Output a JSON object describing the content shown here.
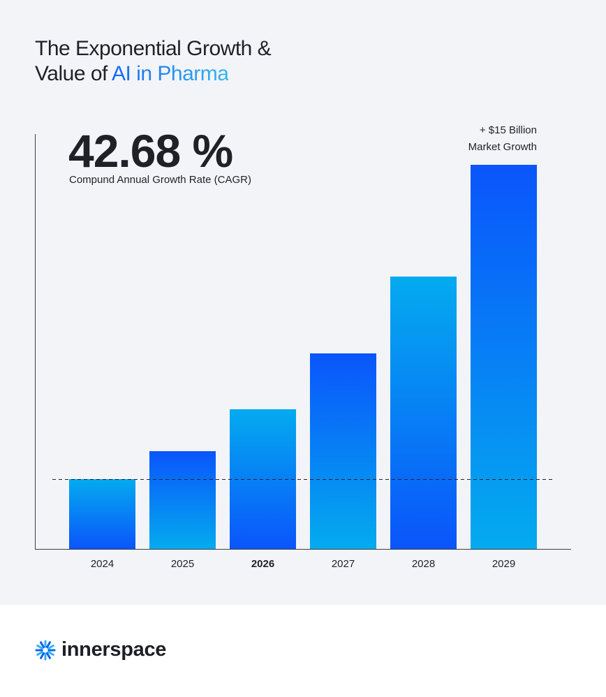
{
  "title": {
    "line1": "The Exponential Growth &",
    "line2_prefix": "Value of ",
    "line2_highlight": "AI in Pharma"
  },
  "stat": {
    "value": "42.68 %",
    "label": "Compund Annual Growth Rate (CAGR)"
  },
  "annotation": {
    "line1": "+ $15 Billion",
    "line2": "Market Growth"
  },
  "chart_data": {
    "type": "bar",
    "categories": [
      "2024",
      "2025",
      "2026",
      "2027",
      "2028",
      "2029"
    ],
    "values": [
      100,
      140,
      200,
      280,
      390,
      550
    ],
    "ylim": [
      0,
      600
    ],
    "reference_line": 100,
    "bold_category": "2026",
    "grid": false,
    "colors": {
      "dark": "#0a55fb",
      "light": "#04abef"
    }
  },
  "brand": {
    "name": "innerspace",
    "icon": "asterisk-burst-icon",
    "icon_colors": [
      "#1060f5",
      "#2fb3ee"
    ]
  }
}
